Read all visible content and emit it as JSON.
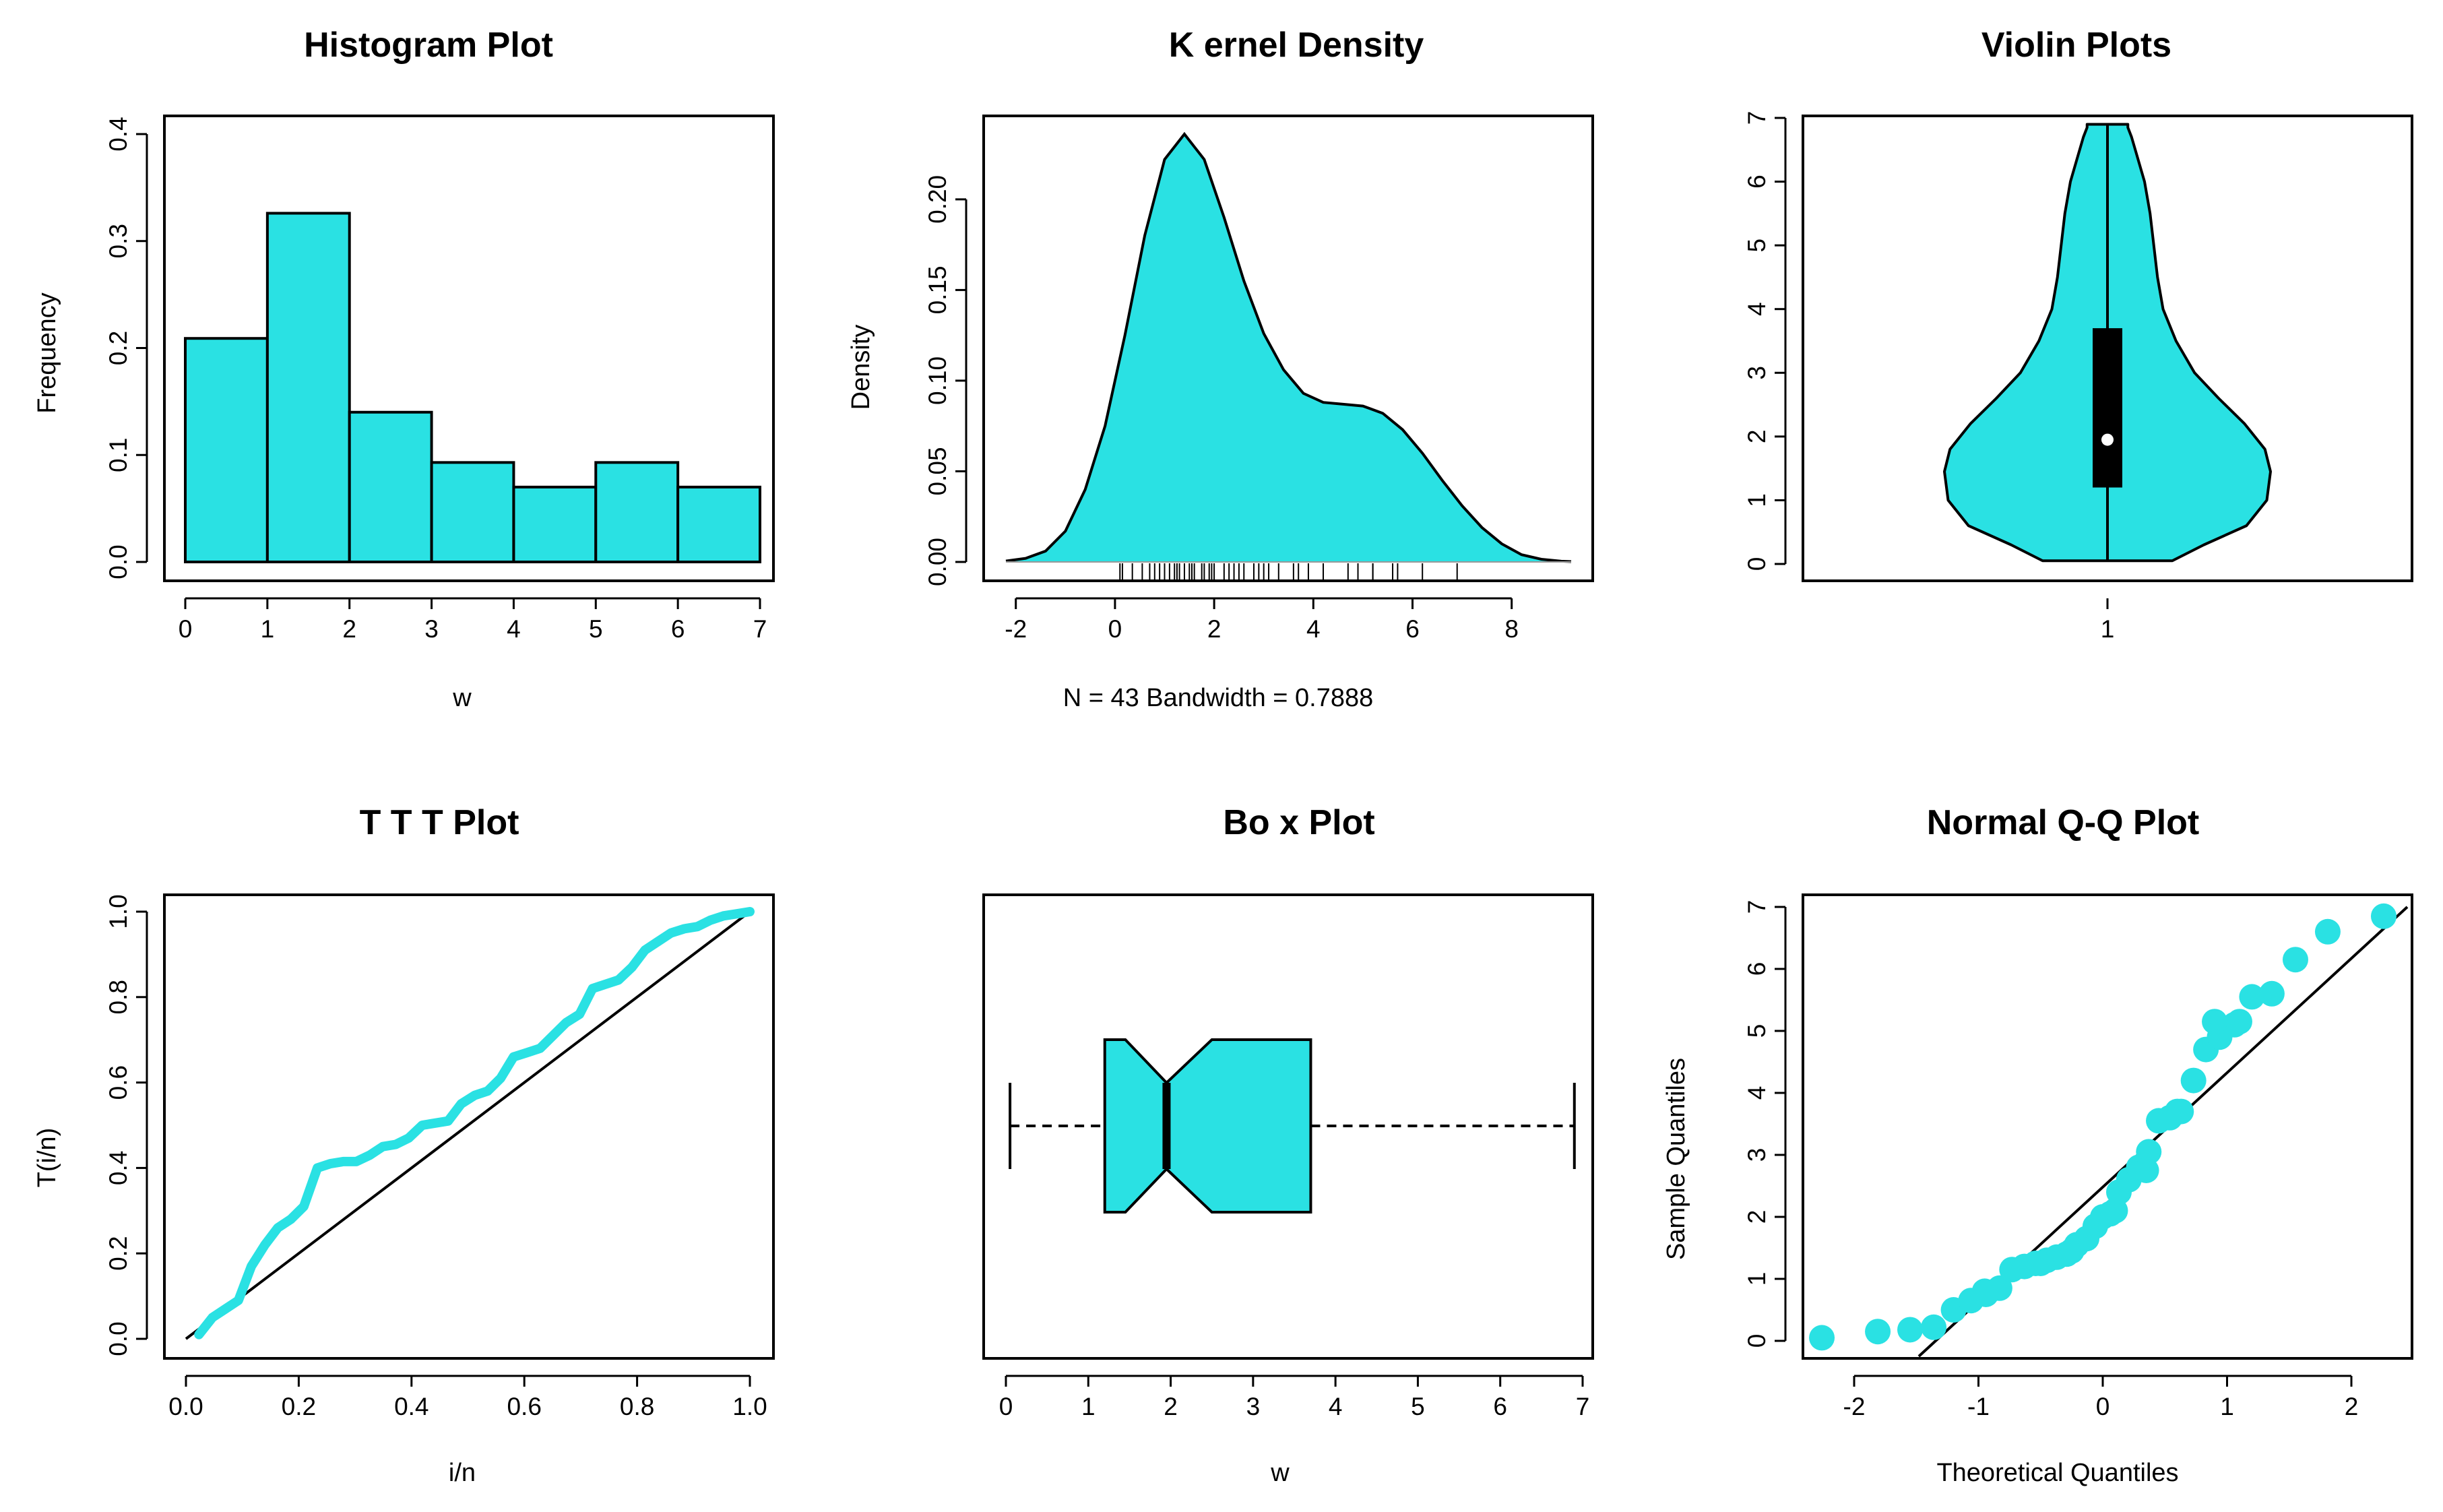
{
  "colors": {
    "fill": "#2AE1E3",
    "line": "#000000",
    "background": "#FFFFFF"
  },
  "chart_data": [
    {
      "id": "histogram",
      "type": "bar",
      "title": "Histogram Plot",
      "xlabel": "w",
      "ylabel": "Frequency",
      "bins": [
        [
          0,
          1
        ],
        [
          1,
          2
        ],
        [
          2,
          3
        ],
        [
          3,
          4
        ],
        [
          4,
          5
        ],
        [
          5,
          6
        ],
        [
          6,
          7
        ]
      ],
      "values": [
        0.209,
        0.326,
        0.14,
        0.093,
        0.07,
        0.093,
        0.07
      ],
      "xlim": [
        0,
        7
      ],
      "ylim": [
        0,
        0.4
      ],
      "xticks": [
        "0",
        "1",
        "2",
        "3",
        "4",
        "5",
        "6",
        "7"
      ],
      "yticks": [
        "0.0",
        "0.1",
        "0.2",
        "0.3",
        "0.4"
      ],
      "grid": false
    },
    {
      "id": "kernel",
      "type": "area",
      "title": "K ernel Density",
      "xlabel": "N = 43   Bandwidth = 0.7888",
      "ylabel": "Density",
      "x": [
        -2.2,
        -1.8,
        -1.4,
        -1.0,
        -0.6,
        -0.2,
        0.2,
        0.6,
        1.0,
        1.4,
        1.8,
        2.2,
        2.6,
        3.0,
        3.4,
        3.8,
        4.2,
        4.6,
        5.0,
        5.4,
        5.8,
        6.2,
        6.6,
        7.0,
        7.4,
        7.8,
        8.2,
        8.6,
        9.0,
        9.2
      ],
      "y": [
        0.0005,
        0.002,
        0.006,
        0.017,
        0.04,
        0.075,
        0.125,
        0.18,
        0.222,
        0.236,
        0.222,
        0.19,
        0.155,
        0.126,
        0.106,
        0.093,
        0.088,
        0.087,
        0.086,
        0.082,
        0.073,
        0.06,
        0.045,
        0.031,
        0.019,
        0.01,
        0.004,
        0.0015,
        0.0004,
        0.0002
      ],
      "rug": [
        0.1,
        0.15,
        0.35,
        0.55,
        0.7,
        0.8,
        0.9,
        1.0,
        1.1,
        1.2,
        1.25,
        1.3,
        1.4,
        1.5,
        1.55,
        1.6,
        1.75,
        1.8,
        1.9,
        1.95,
        2.0,
        2.2,
        2.3,
        2.4,
        2.5,
        2.6,
        2.8,
        2.9,
        3.0,
        3.1,
        3.3,
        3.6,
        3.7,
        3.9,
        4.2,
        4.7,
        4.9,
        5.2,
        5.2,
        5.6,
        5.7,
        6.2,
        6.9
      ],
      "xlim": [
        -2.2,
        9.2
      ],
      "ylim": [
        0,
        0.236
      ],
      "xticks": [
        "-2",
        "0",
        "2",
        "4",
        "6",
        "8"
      ],
      "yticks": [
        "0.00",
        "0.05",
        "0.10",
        "0.15",
        "0.20"
      ],
      "grid": false
    },
    {
      "id": "violin",
      "type": "area",
      "title": "Violin Plots",
      "xlabel": "",
      "ylabel": "",
      "category": "1",
      "y": [
        0.05,
        0.3,
        0.6,
        1.0,
        1.45,
        1.8,
        2.2,
        2.6,
        3.0,
        3.5,
        4.0,
        4.5,
        5.0,
        5.5,
        6.0,
        6.4,
        6.7,
        6.85,
        6.9
      ],
      "halfwidth": [
        0.35,
        0.52,
        0.75,
        0.86,
        0.88,
        0.85,
        0.74,
        0.6,
        0.47,
        0.37,
        0.3,
        0.27,
        0.25,
        0.23,
        0.2,
        0.16,
        0.13,
        0.11,
        0.11
      ],
      "min": 0.05,
      "q1": 1.2,
      "median": 1.95,
      "q3": 3.7,
      "max": 6.9,
      "ylim": [
        0,
        7
      ],
      "yticks": [
        "0",
        "1",
        "2",
        "3",
        "4",
        "5",
        "6",
        "7"
      ],
      "xticks": [
        "1"
      ],
      "grid": false
    },
    {
      "id": "ttt",
      "type": "line",
      "title": "T T T Plot",
      "xlabel": "i/n",
      "ylabel": "T(i/n)",
      "series": [
        {
          "x": [
            0.023,
            0.047,
            0.07,
            0.093,
            0.116,
            0.14,
            0.163,
            0.186,
            0.209,
            0.233,
            0.256,
            0.279,
            0.302,
            0.326,
            0.349,
            0.372,
            0.395,
            0.419,
            0.442,
            0.465,
            0.488,
            0.512,
            0.535,
            0.558,
            0.581,
            0.605,
            0.628,
            0.651,
            0.674,
            0.698,
            0.721,
            0.744,
            0.767,
            0.791,
            0.814,
            0.837,
            0.86,
            0.884,
            0.907,
            0.93,
            0.953,
            0.977,
            1.0
          ],
          "y": [
            0.01,
            0.05,
            0.07,
            0.09,
            0.17,
            0.22,
            0.26,
            0.28,
            0.31,
            0.4,
            0.41,
            0.415,
            0.415,
            0.43,
            0.45,
            0.455,
            0.47,
            0.5,
            0.505,
            0.51,
            0.55,
            0.57,
            0.58,
            0.61,
            0.66,
            0.67,
            0.68,
            0.71,
            0.74,
            0.76,
            0.82,
            0.83,
            0.84,
            0.87,
            0.91,
            0.93,
            0.95,
            0.96,
            0.965,
            0.98,
            0.99,
            0.995,
            1.0
          ]
        },
        {
          "x": [
            0,
            1
          ],
          "y": [
            0,
            1
          ]
        }
      ],
      "xlim": [
        0,
        1
      ],
      "ylim": [
        0,
        1
      ],
      "xticks": [
        "0.0",
        "0.2",
        "0.4",
        "0.6",
        "0.8",
        "1.0"
      ],
      "yticks": [
        "0.0",
        "0.2",
        "0.4",
        "0.6",
        "0.8",
        "1.0"
      ],
      "grid": false
    },
    {
      "id": "boxplot",
      "type": "box",
      "title": "Bo x Plot",
      "xlabel": "w",
      "ylabel": "",
      "min": 0.05,
      "q1": 1.2,
      "notch_low": 1.45,
      "median": 1.95,
      "notch_high": 2.5,
      "q3": 3.7,
      "max": 6.9,
      "xlim": [
        0,
        7
      ],
      "xticks": [
        "0",
        "1",
        "2",
        "3",
        "4",
        "5",
        "6",
        "7"
      ],
      "grid": false
    },
    {
      "id": "qq",
      "type": "scatter",
      "title": "Normal Q-Q Plot",
      "xlabel": "Theoretical Quantiles",
      "ylabel": "Sample Quantiles",
      "x": [
        -2.26,
        -1.81,
        -1.55,
        -1.36,
        -1.2,
        -1.06,
        -0.94,
        -0.83,
        -0.73,
        -0.63,
        -0.54,
        -0.45,
        -0.37,
        -0.29,
        -0.21,
        -0.13,
        -0.06,
        0.0,
        0.06,
        0.13,
        0.21,
        0.29,
        0.37,
        0.45,
        0.54,
        0.63,
        0.73,
        0.83,
        0.94,
        1.06,
        1.2,
        1.36,
        1.55,
        1.81,
        2.26,
        -0.5,
        -0.25,
        0.1,
        0.35,
        0.6,
        0.9,
        1.1,
        -0.95
      ],
      "y": [
        0.05,
        0.15,
        0.18,
        0.22,
        0.5,
        0.65,
        0.75,
        0.85,
        1.15,
        1.2,
        1.25,
        1.3,
        1.35,
        1.4,
        1.55,
        1.65,
        1.85,
        2.0,
        2.05,
        2.4,
        2.6,
        2.8,
        3.05,
        3.55,
        3.6,
        3.7,
        4.2,
        4.7,
        4.9,
        5.1,
        5.55,
        5.6,
        6.15,
        6.6,
        6.85,
        1.25,
        1.45,
        2.1,
        2.75,
        3.7,
        5.15,
        5.15,
        0.8
      ],
      "refline": {
        "x": [
          -1.48,
          2.45
        ],
        "y": [
          -0.25,
          7.0
        ]
      },
      "xlim": [
        -2.45,
        2.45
      ],
      "ylim": [
        -0.1,
        7.0
      ],
      "xticks": [
        "-2",
        "-1",
        "0",
        "1",
        "2"
      ],
      "yticks": [
        "0",
        "1",
        "2",
        "3",
        "4",
        "5",
        "6",
        "7"
      ],
      "grid": false
    }
  ]
}
